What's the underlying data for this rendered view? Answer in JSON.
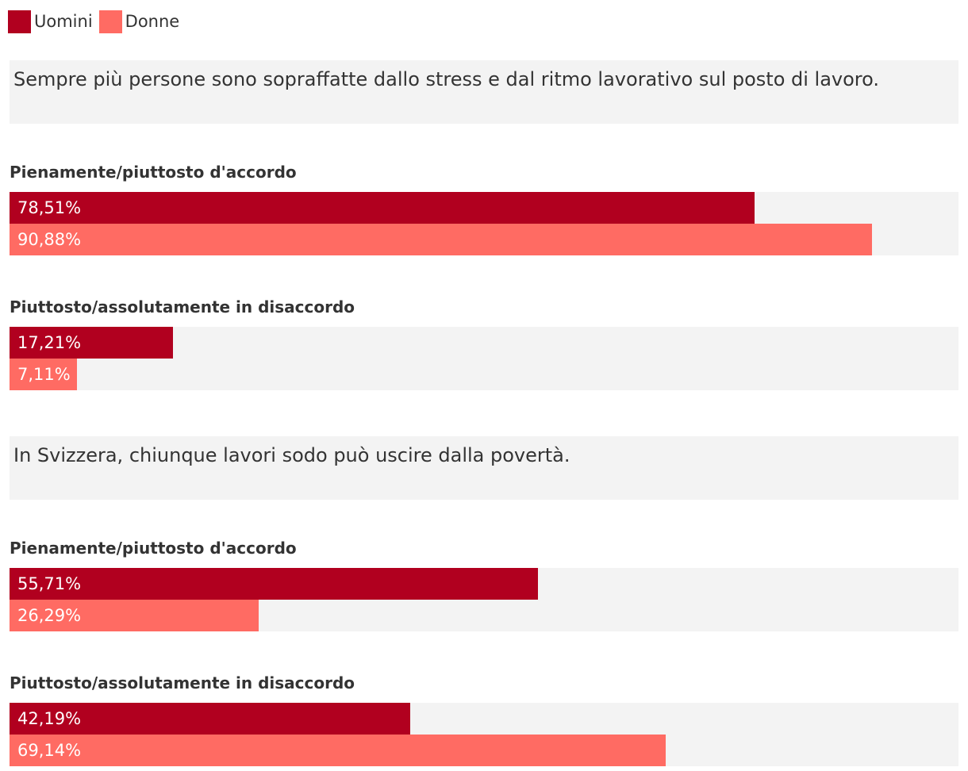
{
  "legend": {
    "items": [
      {
        "label": "Uomini",
        "color": "#b1001f"
      },
      {
        "label": "Donne",
        "color": "#ff6b63"
      }
    ]
  },
  "chart_data": [
    {
      "type": "bar",
      "orientation": "horizontal",
      "title": "Sempre più persone sono sopraffatte dallo stress e dal ritmo lavorativo sul posto di lavoro.",
      "xlim": [
        0,
        100
      ],
      "categories": [
        "Pienamente/piuttosto d'accordo",
        "Piuttosto/assolutamente in disaccordo"
      ],
      "series": [
        {
          "name": "Uomini",
          "color": "#b1001f",
          "values": [
            78.51,
            17.21
          ],
          "labels": [
            "78,51%",
            "17,21%"
          ]
        },
        {
          "name": "Donne",
          "color": "#ff6b63",
          "values": [
            90.88,
            7.11
          ],
          "labels": [
            "90,88%",
            "7,11%"
          ]
        }
      ]
    },
    {
      "type": "bar",
      "orientation": "horizontal",
      "title": "In Svizzera, chiunque lavori sodo può uscire dalla povertà.",
      "xlim": [
        0,
        100
      ],
      "categories": [
        "Pienamente/piuttosto d'accordo",
        "Piuttosto/assolutamente in disaccordo"
      ],
      "series": [
        {
          "name": "Uomini",
          "color": "#b1001f",
          "values": [
            55.71,
            42.19
          ],
          "labels": [
            "55,71%",
            "42,19%"
          ]
        },
        {
          "name": "Donne",
          "color": "#ff6b63",
          "values": [
            26.29,
            69.14
          ],
          "labels": [
            "26,29%",
            "69,14%"
          ]
        }
      ]
    }
  ]
}
